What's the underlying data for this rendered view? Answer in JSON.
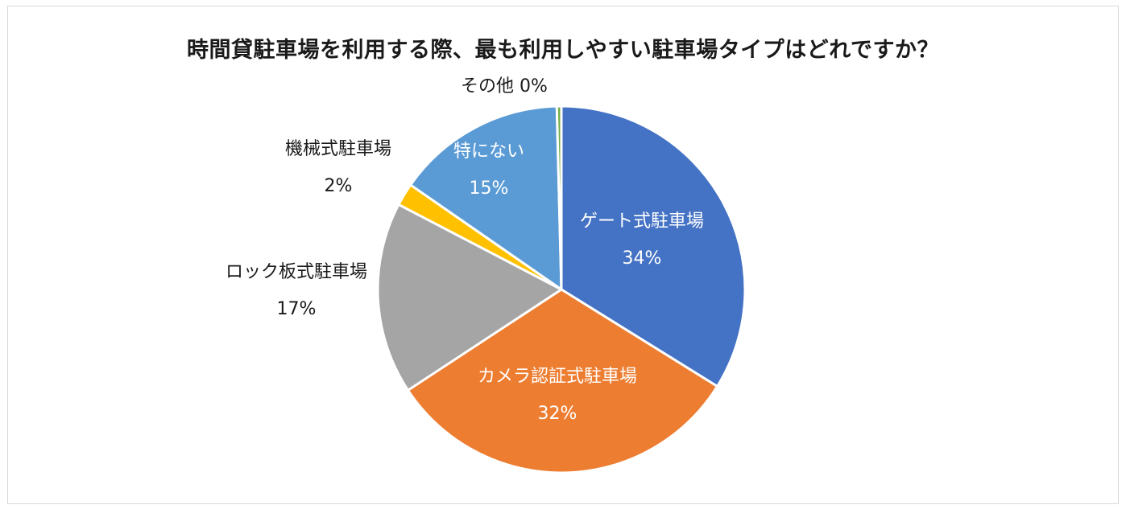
{
  "chart_data": {
    "type": "pie",
    "title": "時間貸駐車場を利用する際、最も利用しやすい駐車場タイプはどれですか？",
    "slices": [
      {
        "label": "ゲート式駐車場",
        "value": 34,
        "value_label": "34%",
        "color": "#4472C4",
        "label_inside": true
      },
      {
        "label": "カメラ認証式駐車場",
        "value": 32,
        "value_label": "32%",
        "color": "#ED7D31",
        "label_inside": true
      },
      {
        "label": "ロック板式駐車場",
        "value": 17,
        "value_label": "17%",
        "color": "#A5A5A5",
        "label_inside": false
      },
      {
        "label": "機械式駐車場",
        "value": 2,
        "value_label": "2%",
        "color": "#FFC000",
        "label_inside": false
      },
      {
        "label": "特にない",
        "value": 15,
        "value_label": "15%",
        "color": "#5B9BD5",
        "label_inside": true
      },
      {
        "label": "その他",
        "value": 0.4,
        "value_label": "0%",
        "color": "#70AD47",
        "label_inside": false
      }
    ],
    "legend": "none"
  }
}
